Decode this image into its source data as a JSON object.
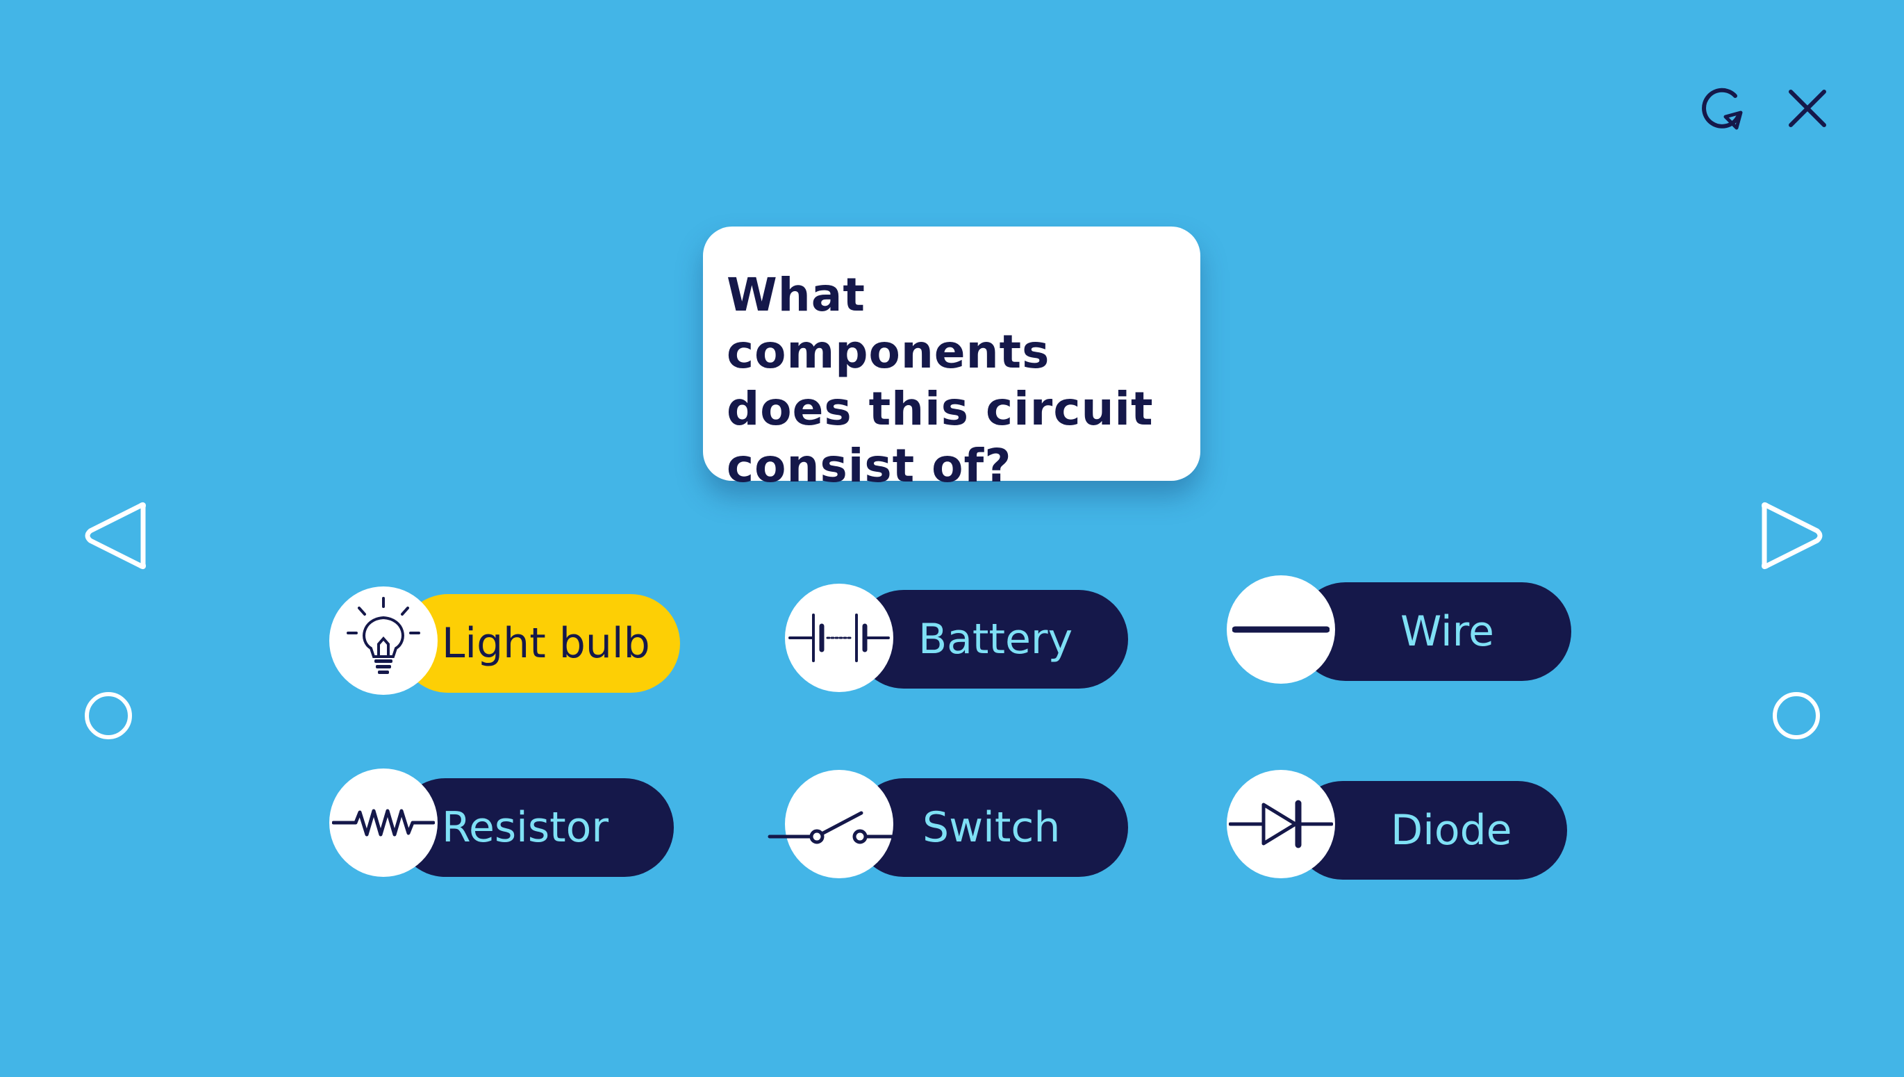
{
  "toolbar": {
    "restart_icon": "restart-icon",
    "close_icon": "close-icon"
  },
  "question": {
    "lines": [
      "What components",
      "does this circuit",
      "consist of?"
    ]
  },
  "navigation": {
    "prev_icon": "triangle-left-icon",
    "next_icon": "triangle-right-icon"
  },
  "answers": [
    {
      "label": "Light bulb",
      "icon": "light-bulb-icon",
      "selected": true
    },
    {
      "label": "Battery",
      "icon": "battery-symbol-icon",
      "selected": false
    },
    {
      "label": "Wire",
      "icon": "wire-symbol-icon",
      "selected": false
    },
    {
      "label": "Resistor",
      "icon": "resistor-symbol-icon",
      "selected": false
    },
    {
      "label": "Switch",
      "icon": "switch-symbol-icon",
      "selected": false
    },
    {
      "label": "Diode",
      "icon": "diode-symbol-icon",
      "selected": false
    }
  ],
  "colors": {
    "background": "#43b5e7",
    "navy": "#15184a",
    "selected": "#fdcf05",
    "label_text": "#7fe0f5",
    "card": "#ffffff"
  }
}
